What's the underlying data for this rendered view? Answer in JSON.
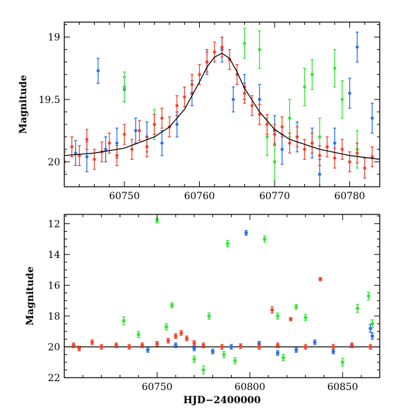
{
  "chart_data": [
    {
      "type": "scatter",
      "panel": "zoomed light curve",
      "title": "",
      "xlabel": "",
      "ylabel": "Magnitude",
      "xlim": [
        60742,
        60784
      ],
      "ylim": [
        20.2,
        18.88
      ],
      "y_inverted": true,
      "x_ticks": [
        60750,
        60760,
        60770,
        60780
      ],
      "x_tick_labels": [
        "60750",
        "60760",
        "60770",
        "60780"
      ],
      "y_ticks": [
        19,
        19.5,
        20
      ],
      "y_tick_labels": [
        "19",
        "19.5",
        "20"
      ],
      "fit_curve": {
        "color": "#000000",
        "points": [
          [
            60742,
            19.95
          ],
          [
            60746,
            19.93
          ],
          [
            60750,
            19.89
          ],
          [
            60754,
            19.8
          ],
          [
            60756,
            19.72
          ],
          [
            60758,
            19.58
          ],
          [
            60760,
            19.36
          ],
          [
            60761,
            19.24
          ],
          [
            60762,
            19.16
          ],
          [
            60763,
            19.13
          ],
          [
            60764,
            19.17
          ],
          [
            60765,
            19.28
          ],
          [
            60766,
            19.41
          ],
          [
            60768,
            19.6
          ],
          [
            60770,
            19.74
          ],
          [
            60772,
            19.82
          ],
          [
            60776,
            19.9
          ],
          [
            60780,
            19.95
          ],
          [
            60784,
            19.98
          ]
        ]
      },
      "series": [
        {
          "color": "#2f6fe6",
          "points": [
            {
              "x": 60743.5,
              "y": 19.93,
              "err": 0.1
            },
            {
              "x": 60745.0,
              "y": 19.96,
              "err": 0.12
            },
            {
              "x": 60746.5,
              "y": 19.27,
              "err": 0.1
            },
            {
              "x": 60747.5,
              "y": 19.9,
              "err": 0.1
            },
            {
              "x": 60749.0,
              "y": 19.85,
              "err": 0.12
            },
            {
              "x": 60750.0,
              "y": 19.42,
              "err": 0.1
            },
            {
              "x": 60751.5,
              "y": 19.75,
              "err": 0.1
            },
            {
              "x": 60753.0,
              "y": 19.8,
              "err": 0.12
            },
            {
              "x": 60755.0,
              "y": 19.85,
              "err": 0.1
            },
            {
              "x": 60757.0,
              "y": 19.7,
              "err": 0.1
            },
            {
              "x": 60759.0,
              "y": 19.45,
              "err": 0.1
            },
            {
              "x": 60761.0,
              "y": 19.2,
              "err": 0.1
            },
            {
              "x": 60763.0,
              "y": 19.1,
              "err": 0.1
            },
            {
              "x": 60764.5,
              "y": 19.5,
              "err": 0.1
            },
            {
              "x": 60766.0,
              "y": 19.4,
              "err": 0.1
            },
            {
              "x": 60768.0,
              "y": 19.5,
              "err": 0.12
            },
            {
              "x": 60770.0,
              "y": 19.75,
              "err": 0.12
            },
            {
              "x": 60771.0,
              "y": 19.9,
              "err": 0.12
            },
            {
              "x": 60773.0,
              "y": 19.8,
              "err": 0.12
            },
            {
              "x": 60775.0,
              "y": 19.85,
              "err": 0.12
            },
            {
              "x": 60776.0,
              "y": 20.1,
              "err": 0.12
            },
            {
              "x": 60778.0,
              "y": 19.85,
              "err": 0.12
            },
            {
              "x": 60780.0,
              "y": 19.45,
              "err": 0.12
            },
            {
              "x": 60781.0,
              "y": 19.08,
              "err": 0.12
            },
            {
              "x": 60783.0,
              "y": 19.65,
              "err": 0.12
            }
          ]
        },
        {
          "color": "#33e633",
          "points": [
            {
              "x": 60750.0,
              "y": 19.4,
              "err": 0.12
            },
            {
              "x": 60754.0,
              "y": 19.7,
              "err": 0.12
            },
            {
              "x": 60766.0,
              "y": 19.05,
              "err": 0.12
            },
            {
              "x": 60768.0,
              "y": 19.1,
              "err": 0.15
            },
            {
              "x": 60769.0,
              "y": 19.8,
              "err": 0.15
            },
            {
              "x": 60770.0,
              "y": 20.0,
              "err": 0.15
            },
            {
              "x": 60772.0,
              "y": 19.65,
              "err": 0.15
            },
            {
              "x": 60774.0,
              "y": 19.4,
              "err": 0.15
            },
            {
              "x": 60775.0,
              "y": 19.3,
              "err": 0.12
            },
            {
              "x": 60776.0,
              "y": 19.8,
              "err": 0.15
            },
            {
              "x": 60778.0,
              "y": 19.25,
              "err": 0.15
            },
            {
              "x": 60779.0,
              "y": 19.5,
              "err": 0.15
            },
            {
              "x": 60781.0,
              "y": 19.9,
              "err": 0.15
            }
          ]
        },
        {
          "color": "#f0432d",
          "points": [
            {
              "x": 60742.0,
              "y": 20.0,
              "err": 0.08
            },
            {
              "x": 60743.0,
              "y": 19.88,
              "err": 0.08
            },
            {
              "x": 60744.0,
              "y": 19.95,
              "err": 0.08
            },
            {
              "x": 60745.0,
              "y": 19.82,
              "err": 0.08
            },
            {
              "x": 60746.0,
              "y": 19.98,
              "err": 0.08
            },
            {
              "x": 60747.0,
              "y": 19.92,
              "err": 0.08
            },
            {
              "x": 60748.0,
              "y": 19.85,
              "err": 0.08
            },
            {
              "x": 60749.0,
              "y": 19.95,
              "err": 0.08
            },
            {
              "x": 60750.0,
              "y": 19.78,
              "err": 0.08
            },
            {
              "x": 60751.0,
              "y": 19.9,
              "err": 0.08
            },
            {
              "x": 60752.0,
              "y": 19.75,
              "err": 0.08
            },
            {
              "x": 60753.0,
              "y": 19.88,
              "err": 0.08
            },
            {
              "x": 60754.0,
              "y": 19.7,
              "err": 0.08
            },
            {
              "x": 60755.0,
              "y": 19.65,
              "err": 0.08
            },
            {
              "x": 60756.0,
              "y": 19.72,
              "err": 0.08
            },
            {
              "x": 60757.0,
              "y": 19.55,
              "err": 0.08
            },
            {
              "x": 60758.0,
              "y": 19.48,
              "err": 0.08
            },
            {
              "x": 60759.0,
              "y": 19.38,
              "err": 0.08
            },
            {
              "x": 60760.0,
              "y": 19.3,
              "err": 0.08
            },
            {
              "x": 60761.0,
              "y": 19.2,
              "err": 0.08
            },
            {
              "x": 60762.0,
              "y": 19.12,
              "err": 0.08
            },
            {
              "x": 60763.0,
              "y": 19.08,
              "err": 0.08
            },
            {
              "x": 60764.0,
              "y": 19.18,
              "err": 0.08
            },
            {
              "x": 60765.0,
              "y": 19.3,
              "err": 0.08
            },
            {
              "x": 60766.0,
              "y": 19.45,
              "err": 0.08
            },
            {
              "x": 60767.0,
              "y": 19.55,
              "err": 0.08
            },
            {
              "x": 60768.0,
              "y": 19.62,
              "err": 0.08
            },
            {
              "x": 60769.0,
              "y": 19.7,
              "err": 0.08
            },
            {
              "x": 60770.0,
              "y": 19.78,
              "err": 0.08
            },
            {
              "x": 60771.0,
              "y": 19.72,
              "err": 0.08
            },
            {
              "x": 60772.0,
              "y": 19.85,
              "err": 0.08
            },
            {
              "x": 60773.0,
              "y": 19.8,
              "err": 0.08
            },
            {
              "x": 60774.0,
              "y": 19.9,
              "err": 0.08
            },
            {
              "x": 60775.0,
              "y": 19.85,
              "err": 0.08
            },
            {
              "x": 60776.0,
              "y": 19.95,
              "err": 0.08
            },
            {
              "x": 60777.0,
              "y": 19.88,
              "err": 0.08
            },
            {
              "x": 60778.0,
              "y": 19.97,
              "err": 0.08
            },
            {
              "x": 60779.0,
              "y": 19.9,
              "err": 0.08
            },
            {
              "x": 60780.0,
              "y": 20.0,
              "err": 0.08
            },
            {
              "x": 60781.0,
              "y": 19.93,
              "err": 0.08
            },
            {
              "x": 60782.0,
              "y": 20.05,
              "err": 0.08
            },
            {
              "x": 60783.0,
              "y": 19.96,
              "err": 0.08
            }
          ]
        }
      ]
    },
    {
      "type": "scatter",
      "panel": "full light curve",
      "title": "",
      "xlabel": "HJD−2400000",
      "ylabel": "Magnitude",
      "xlim": [
        60700,
        60870
      ],
      "ylim": [
        22,
        11.4
      ],
      "y_inverted": true,
      "x_ticks": [
        60750,
        60800,
        60850
      ],
      "x_tick_labels": [
        "60750",
        "60800",
        "60850"
      ],
      "y_ticks": [
        12,
        14,
        16,
        18,
        20,
        22
      ],
      "y_tick_labels": [
        "12",
        "14",
        "16",
        "18",
        "20",
        "22"
      ],
      "reference_line": {
        "y": 20,
        "color": "#000000"
      },
      "series": [
        {
          "color": "#2f6fe6",
          "points": [
            {
              "x": 60745,
              "y": 20.2,
              "err": 0.15
            },
            {
              "x": 60760,
              "y": 19.9,
              "err": 0.15
            },
            {
              "x": 60770,
              "y": 20.1,
              "err": 0.15
            },
            {
              "x": 60780,
              "y": 20.3,
              "err": 0.15
            },
            {
              "x": 60790,
              "y": 20.0,
              "err": 0.15
            },
            {
              "x": 60798,
              "y": 12.6,
              "err": 0.15
            },
            {
              "x": 60805,
              "y": 19.8,
              "err": 0.15
            },
            {
              "x": 60815,
              "y": 20.4,
              "err": 0.15
            },
            {
              "x": 60825,
              "y": 20.2,
              "err": 0.15
            },
            {
              "x": 60835,
              "y": 19.7,
              "err": 0.15
            },
            {
              "x": 60845,
              "y": 20.3,
              "err": 0.15
            },
            {
              "x": 60855,
              "y": 19.9,
              "err": 0.15
            },
            {
              "x": 60865,
              "y": 18.8,
              "err": 0.25
            },
            {
              "x": 60866,
              "y": 19.3,
              "err": 0.2
            }
          ]
        },
        {
          "color": "#33e633",
          "points": [
            {
              "x": 60732,
              "y": 18.3,
              "err": 0.25
            },
            {
              "x": 60740,
              "y": 19.2,
              "err": 0.2
            },
            {
              "x": 60750,
              "y": 11.8,
              "err": 0.15
            },
            {
              "x": 60755,
              "y": 18.7,
              "err": 0.2
            },
            {
              "x": 60758,
              "y": 17.3,
              "err": 0.15
            },
            {
              "x": 60770,
              "y": 20.8,
              "err": 0.2
            },
            {
              "x": 60775,
              "y": 21.5,
              "err": 0.25
            },
            {
              "x": 60778,
              "y": 18.0,
              "err": 0.2
            },
            {
              "x": 60786,
              "y": 20.5,
              "err": 0.2
            },
            {
              "x": 60788,
              "y": 13.3,
              "err": 0.2
            },
            {
              "x": 60792,
              "y": 20.9,
              "err": 0.2
            },
            {
              "x": 60808,
              "y": 13.0,
              "err": 0.2
            },
            {
              "x": 60815,
              "y": 18.0,
              "err": 0.2
            },
            {
              "x": 60818,
              "y": 20.7,
              "err": 0.2
            },
            {
              "x": 60825,
              "y": 17.4,
              "err": 0.15
            },
            {
              "x": 60830,
              "y": 18.1,
              "err": 0.2
            },
            {
              "x": 60850,
              "y": 21.0,
              "err": 0.25
            },
            {
              "x": 60858,
              "y": 17.5,
              "err": 0.25
            },
            {
              "x": 60864,
              "y": 16.7,
              "err": 0.25
            },
            {
              "x": 60866,
              "y": 18.5,
              "err": 0.25
            }
          ]
        },
        {
          "color": "#f0432d",
          "points": [
            {
              "x": 60705,
              "y": 19.9,
              "err": 0.15
            },
            {
              "x": 60708,
              "y": 20.1,
              "err": 0.15
            },
            {
              "x": 60715,
              "y": 19.7,
              "err": 0.15
            },
            {
              "x": 60720,
              "y": 20.0,
              "err": 0.15
            },
            {
              "x": 60728,
              "y": 19.9,
              "err": 0.15
            },
            {
              "x": 60735,
              "y": 20.0,
              "err": 0.15
            },
            {
              "x": 60742,
              "y": 19.9,
              "err": 0.15
            },
            {
              "x": 60750,
              "y": 19.8,
              "err": 0.15
            },
            {
              "x": 60756,
              "y": 19.6,
              "err": 0.15
            },
            {
              "x": 60760,
              "y": 19.3,
              "err": 0.15
            },
            {
              "x": 60763,
              "y": 19.1,
              "err": 0.15
            },
            {
              "x": 60766,
              "y": 19.45,
              "err": 0.15
            },
            {
              "x": 60770,
              "y": 19.75,
              "err": 0.15
            },
            {
              "x": 60775,
              "y": 19.9,
              "err": 0.15
            },
            {
              "x": 60785,
              "y": 20.0,
              "err": 0.15
            },
            {
              "x": 60795,
              "y": 19.95,
              "err": 0.15
            },
            {
              "x": 60805,
              "y": 20.0,
              "err": 0.15
            },
            {
              "x": 60812,
              "y": 17.6,
              "err": 0.2
            },
            {
              "x": 60815,
              "y": 19.9,
              "err": 0.15
            },
            {
              "x": 60822,
              "y": 18.2,
              "err": 0.1
            },
            {
              "x": 60830,
              "y": 20.0,
              "err": 0.15
            },
            {
              "x": 60838,
              "y": 15.6,
              "err": 0.1
            },
            {
              "x": 60845,
              "y": 20.0,
              "err": 0.15
            },
            {
              "x": 60855,
              "y": 19.9,
              "err": 0.15
            },
            {
              "x": 60865,
              "y": 20.0,
              "err": 0.15
            }
          ]
        }
      ]
    }
  ]
}
